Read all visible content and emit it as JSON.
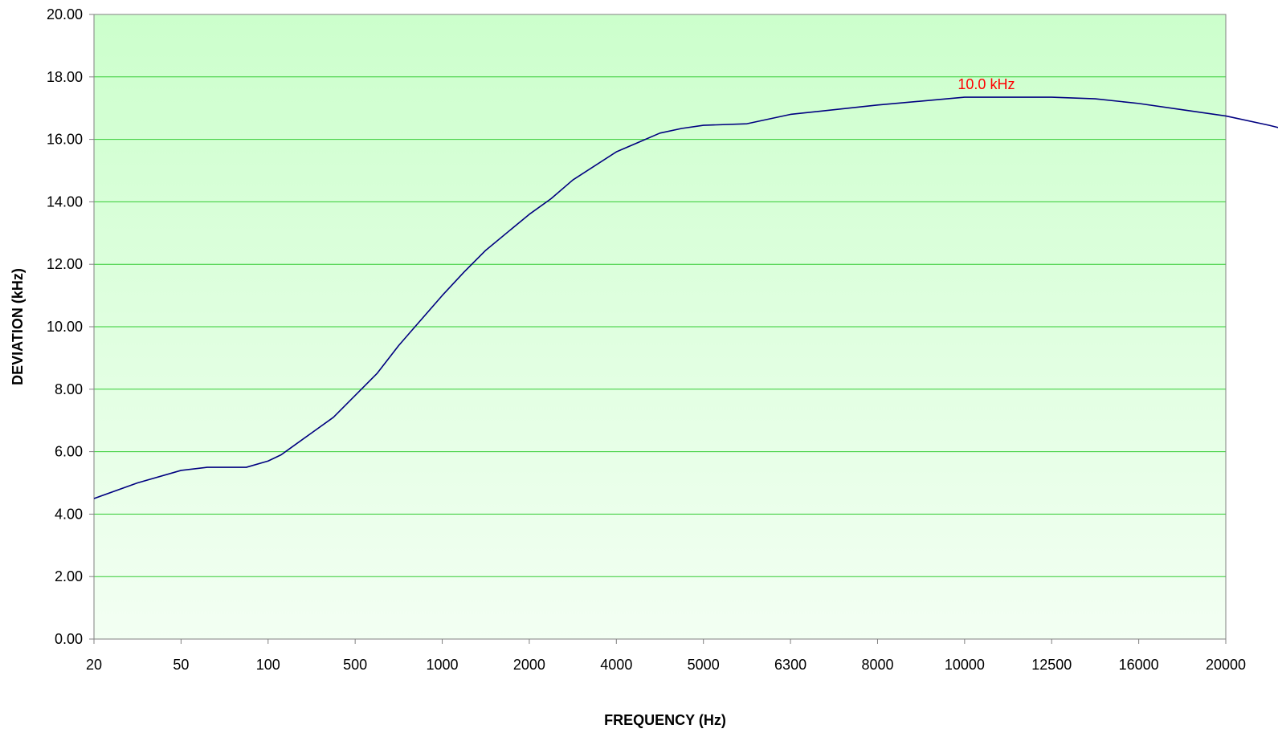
{
  "chart_data": {
    "type": "line",
    "title": "",
    "xlabel": "FREQUENCY (Hz)",
    "ylabel": "DEVIATION (kHz)",
    "x_ticks": [
      "20",
      "50",
      "100",
      "500",
      "1000",
      "2000",
      "4000",
      "5000",
      "6300",
      "8000",
      "10000",
      "12500",
      "16000",
      "20000"
    ],
    "y_ticks": [
      "0.00",
      "2.00",
      "4.00",
      "6.00",
      "8.00",
      "10.00",
      "12.00",
      "14.00",
      "16.00",
      "18.00",
      "20.00"
    ],
    "ylim": [
      0,
      20
    ],
    "grid": true,
    "legend": "none",
    "series": [
      {
        "x": [
          0,
          0.5,
          1,
          1.3,
          1.5,
          1.75,
          2,
          2.15,
          2.25,
          2.5,
          2.75,
          3,
          3.25,
          3.5,
          4,
          4.25,
          4.5,
          5,
          5.25,
          5.5,
          6,
          6.25,
          6.5,
          6.75,
          7,
          7.5,
          8,
          9,
          10,
          10.5,
          11,
          11.5,
          12,
          12.5,
          13,
          13.5,
          14
        ],
        "values": [
          4.5,
          5.0,
          5.4,
          5.5,
          5.5,
          5.5,
          5.7,
          5.9,
          6.1,
          6.6,
          7.1,
          7.8,
          8.5,
          9.4,
          11.0,
          11.75,
          12.45,
          13.6,
          14.1,
          14.7,
          15.6,
          15.9,
          16.2,
          16.35,
          16.45,
          16.5,
          16.8,
          17.1,
          17.35,
          17.35,
          17.35,
          17.3,
          17.15,
          16.95,
          16.75,
          16.45,
          16.1
        ],
        "color": "#000080"
      }
    ],
    "annotations": [
      {
        "text": "10.0 kHz",
        "x": 10.25,
        "y": 17.35,
        "color": "#ff0000"
      }
    ],
    "colors": {
      "plot_top": "#ccffcc",
      "plot_bottom": "#f3fff3",
      "gridline": "#33cc33",
      "axis": "#808080"
    }
  }
}
